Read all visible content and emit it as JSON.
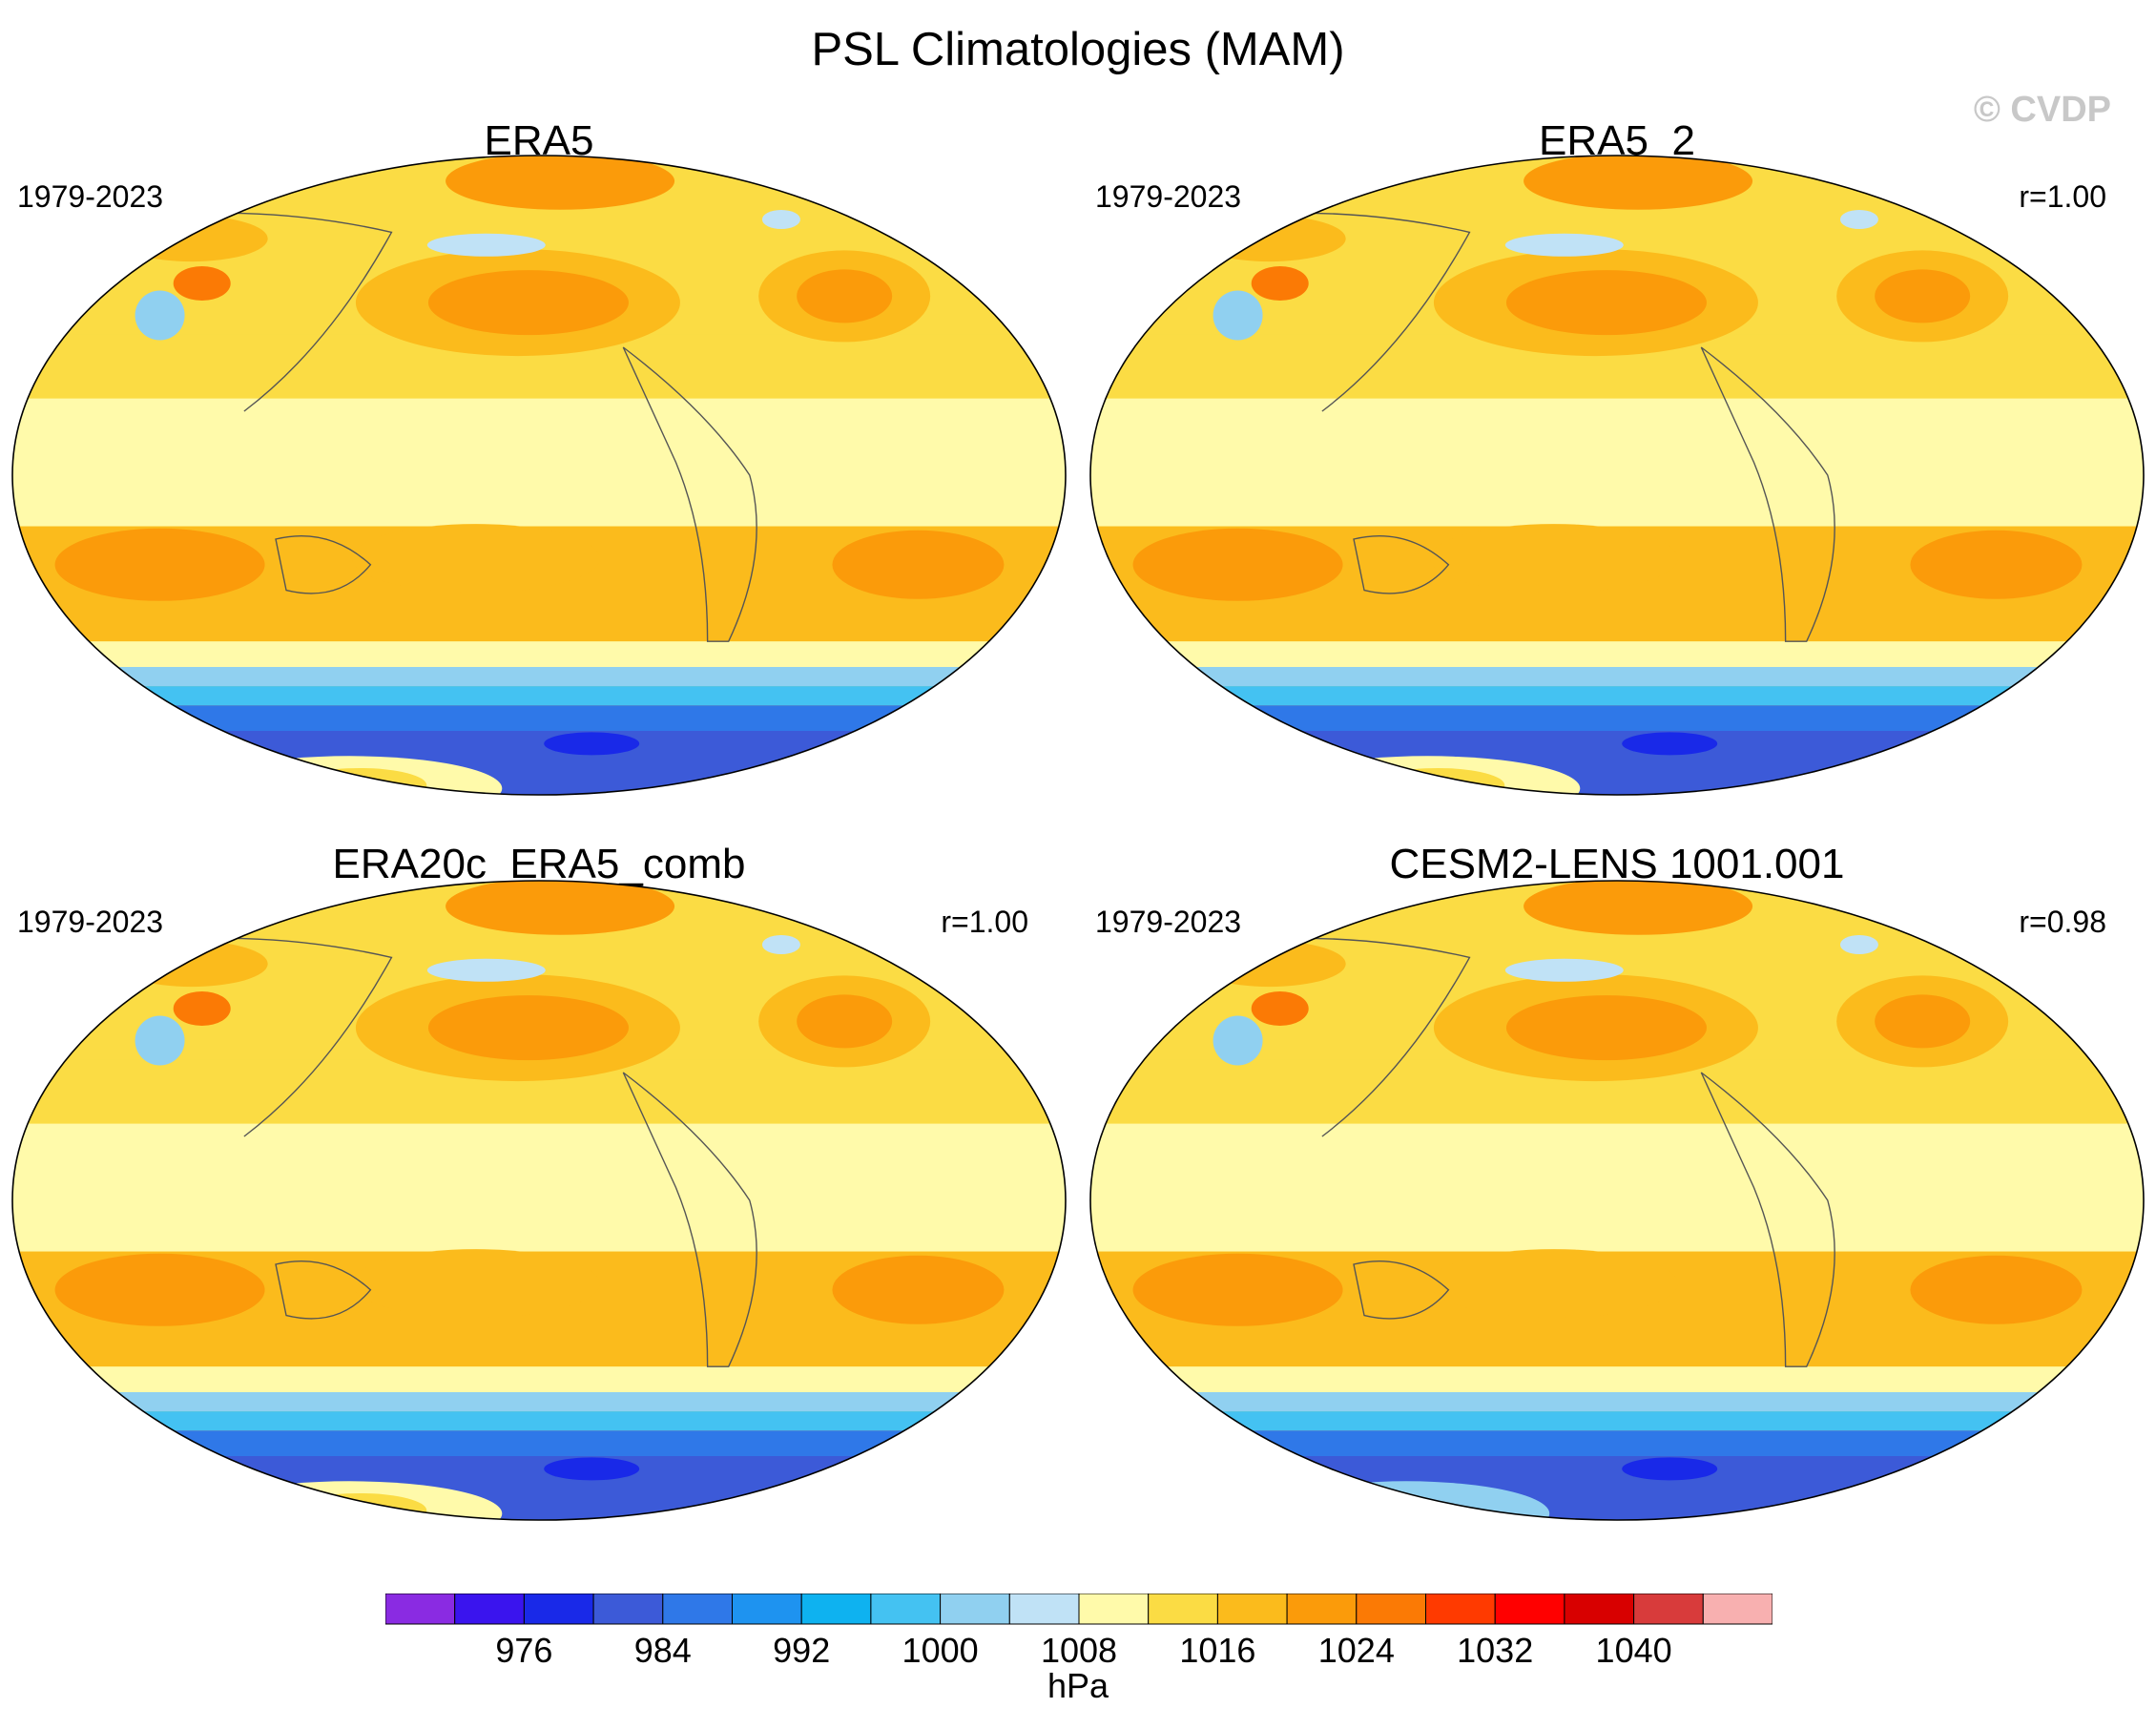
{
  "figure": {
    "title": "PSL Climatologies (MAM)",
    "credit": "© CVDP",
    "units": "hPa"
  },
  "panels": [
    {
      "name": "ERA5",
      "years": "1979-2023",
      "r": ""
    },
    {
      "name": "ERA5_2",
      "years": "1979-2023",
      "r": "r=1.00"
    },
    {
      "name": "ERA20c_ERA5_comb",
      "years": "1979-2023",
      "r": "r=1.00"
    },
    {
      "name": "CESM2-LENS 1001.001",
      "years": "1979-2023",
      "r": "r=0.98"
    }
  ],
  "colorbar": {
    "colors": [
      "#8a2be2",
      "#3a14ee",
      "#1929e8",
      "#3c5ad8",
      "#2f78e8",
      "#1e93f0",
      "#0eb2f0",
      "#44c2f2",
      "#90d0f0",
      "#c0e2f6",
      "#fffaaa",
      "#fbdc44",
      "#fbbb1c",
      "#fb9b0a",
      "#fb7a05",
      "#ff3a00",
      "#ff0000",
      "#d80000",
      "#d83b3b",
      "#f8b0b0"
    ],
    "tick_labels": [
      "976",
      "984",
      "992",
      "1000",
      "1008",
      "1016",
      "1024",
      "1032",
      "1040"
    ]
  },
  "legend_colors": {
    "ocean_low": "#1929e8",
    "ocean_mid": "#2f78e8",
    "ice": "#90d0f0",
    "pale": "#fffaaa",
    "gold": "#fbdc44",
    "orange": "#fbbb1c",
    "dark_orange": "#fb9b0a"
  }
}
